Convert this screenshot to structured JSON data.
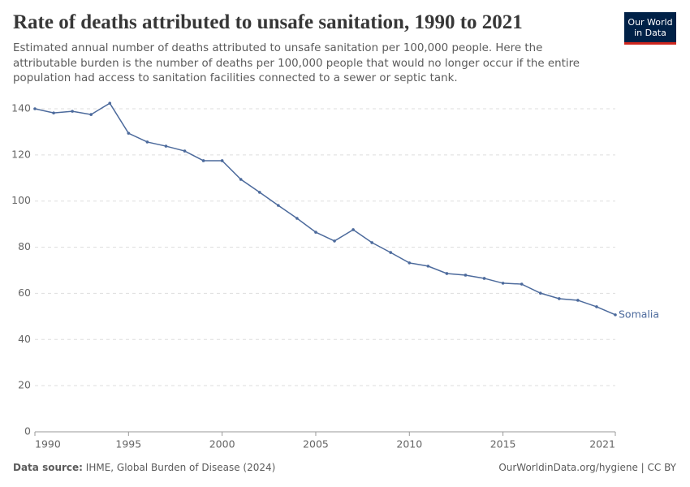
{
  "chart_data": {
    "type": "line",
    "title": "Rate of deaths attributed to unsafe sanitation, 1990 to 2021",
    "subtitle": "Estimated annual number of deaths attributed to unsafe sanitation per 100,000 people. Here the attributable burden is the number of deaths per 100,000 people that would no longer occur if the entire population had access to sanitation facilities connected to a sewer or septic tank.",
    "x": [
      1990,
      1991,
      1992,
      1993,
      1994,
      1995,
      1996,
      1997,
      1998,
      1999,
      2000,
      2001,
      2002,
      2003,
      2004,
      2005,
      2006,
      2007,
      2008,
      2009,
      2010,
      2011,
      2012,
      2013,
      2014,
      2015,
      2016,
      2017,
      2018,
      2019,
      2020,
      2021
    ],
    "series": [
      {
        "name": "Somalia",
        "color": "#4c6a9c",
        "values": [
          140.0,
          138.2,
          138.9,
          137.5,
          142.4,
          129.4,
          125.6,
          123.8,
          121.7,
          117.5,
          117.5,
          109.4,
          103.8,
          98.1,
          92.5,
          86.5,
          82.7,
          87.6,
          82.0,
          77.7,
          73.2,
          71.8,
          68.6,
          67.9,
          66.5,
          64.4,
          64.0,
          60.1,
          57.7,
          57.0,
          54.2,
          50.7
        ]
      }
    ],
    "xlim": [
      1990,
      2021
    ],
    "xticks": [
      1990,
      1995,
      2000,
      2005,
      2010,
      2015,
      2021
    ],
    "ylim": [
      0,
      140
    ],
    "yticks": [
      0,
      20,
      40,
      60,
      80,
      100,
      120,
      140
    ],
    "grid": true,
    "source_label": "Data source:",
    "source": "IHME, Global Burden of Disease (2024)",
    "url": "OurWorldinData.org/hygiene | CC BY",
    "logo": [
      "Our World",
      "in Data"
    ]
  }
}
